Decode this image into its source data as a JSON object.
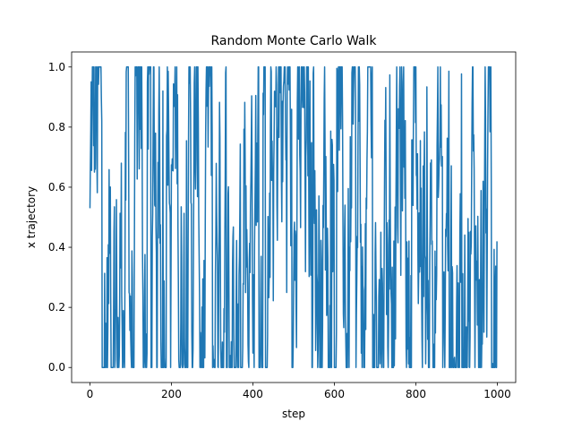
{
  "chart_data": {
    "type": "line",
    "title": "Random Monte Carlo Walk",
    "xlabel": "step",
    "ylabel": "x trajectory",
    "xlim": [
      -45,
      1045
    ],
    "ylim": [
      -0.05,
      1.05
    ],
    "xticks": [
      0,
      200,
      400,
      600,
      800,
      1000
    ],
    "xtick_labels": [
      "0",
      "200",
      "400",
      "600",
      "800",
      "1000"
    ],
    "yticks": [
      0.0,
      0.2,
      0.4,
      0.6,
      0.8,
      1.0
    ],
    "ytick_labels": [
      "0.0",
      "0.2",
      "0.4",
      "0.6",
      "0.8",
      "1.0"
    ],
    "grid": false,
    "series": [
      {
        "color": "#1f77b4",
        "n_points": 1000,
        "x_start": 0,
        "x_end": 999,
        "y_start": 0.53,
        "y_end": 0.42,
        "y_min": 0.0,
        "y_max": 1.0
      }
    ]
  }
}
